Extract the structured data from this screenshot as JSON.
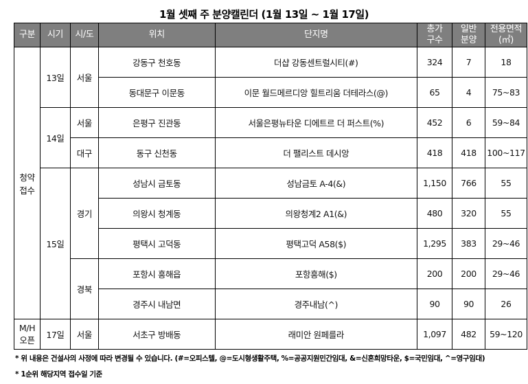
{
  "title": "1월 셋째 주 분양캘린더 (1월 13일 ~ 1월 17일)",
  "headers": [
    "구분",
    "시기",
    "시/도",
    "위치",
    "단지명",
    "총가\n구수",
    "일반\n분양",
    "전용면적\n(㎡)"
  ],
  "groups": [
    {
      "category": "청약\n접수",
      "dates": [
        {
          "date": "13일",
          "regions": [
            {
              "region": "서울",
              "rows": [
                {
                  "location": "강동구 천호동",
                  "complex": "더샵 강동센트럴시티(#)",
                  "total": "324",
                  "general": "7",
                  "area": "18"
                },
                {
                  "location": "동대문구 이문동",
                  "complex": "이문 월드메르디앙 힐트리움 더테라스(@)",
                  "total": "65",
                  "general": "4",
                  "area": "75~83"
                }
              ]
            }
          ]
        },
        {
          "date": "14일",
          "regions": [
            {
              "region": "서울",
              "rows": [
                {
                  "location": "은평구 진관동",
                  "complex": "서울은평뉴타운 디에트르 더 퍼스트(%)",
                  "total": "452",
                  "general": "6",
                  "area": "59~84"
                }
              ]
            },
            {
              "region": "대구",
              "rows": [
                {
                  "location": "동구 신천동",
                  "complex": "더 팰리스트 데시앙",
                  "total": "418",
                  "general": "418",
                  "area": "100~117"
                }
              ]
            }
          ]
        },
        {
          "date": "15일",
          "regions": [
            {
              "region": "경기",
              "rows": [
                {
                  "location": "성남시 금토동",
                  "complex": "성남금토 A-4(&)",
                  "total": "1,150",
                  "general": "766",
                  "area": "55"
                },
                {
                  "location": "의왕시 청계동",
                  "complex": "의왕청계2 A1(&)",
                  "total": "480",
                  "general": "320",
                  "area": "55"
                },
                {
                  "location": "평택시 고덕동",
                  "complex": "평택고덕 A58($)",
                  "total": "1,295",
                  "general": "383",
                  "area": "29~46"
                }
              ]
            },
            {
              "region": "경북",
              "rows": [
                {
                  "location": "포항시 흥해읍",
                  "complex": "포항흥해($)",
                  "total": "200",
                  "general": "200",
                  "area": "29~46"
                },
                {
                  "location": "경주시 내남면",
                  "complex": "경주내남(^)",
                  "total": "90",
                  "general": "90",
                  "area": "26"
                }
              ]
            }
          ]
        }
      ]
    },
    {
      "category": "M/H\n오픈",
      "dates": [
        {
          "date": "17일",
          "regions": [
            {
              "region": "서울",
              "rows": [
                {
                  "location": "서초구 방배동",
                  "complex": "래미안 원페를라",
                  "total": "1,097",
                  "general": "482",
                  "area": "59~120"
                }
              ]
            }
          ]
        }
      ]
    }
  ],
  "notes": [
    "* 위 내용은 건설사의 사정에 따라 변경될 수 있습니다. (#=오피스텔, @=도시형생활주택, %=공공지원민간임대, &=신혼희망타운, $=국민임대, ^=영구임대)",
    "* 1순위 해당지역 접수일 기준"
  ]
}
